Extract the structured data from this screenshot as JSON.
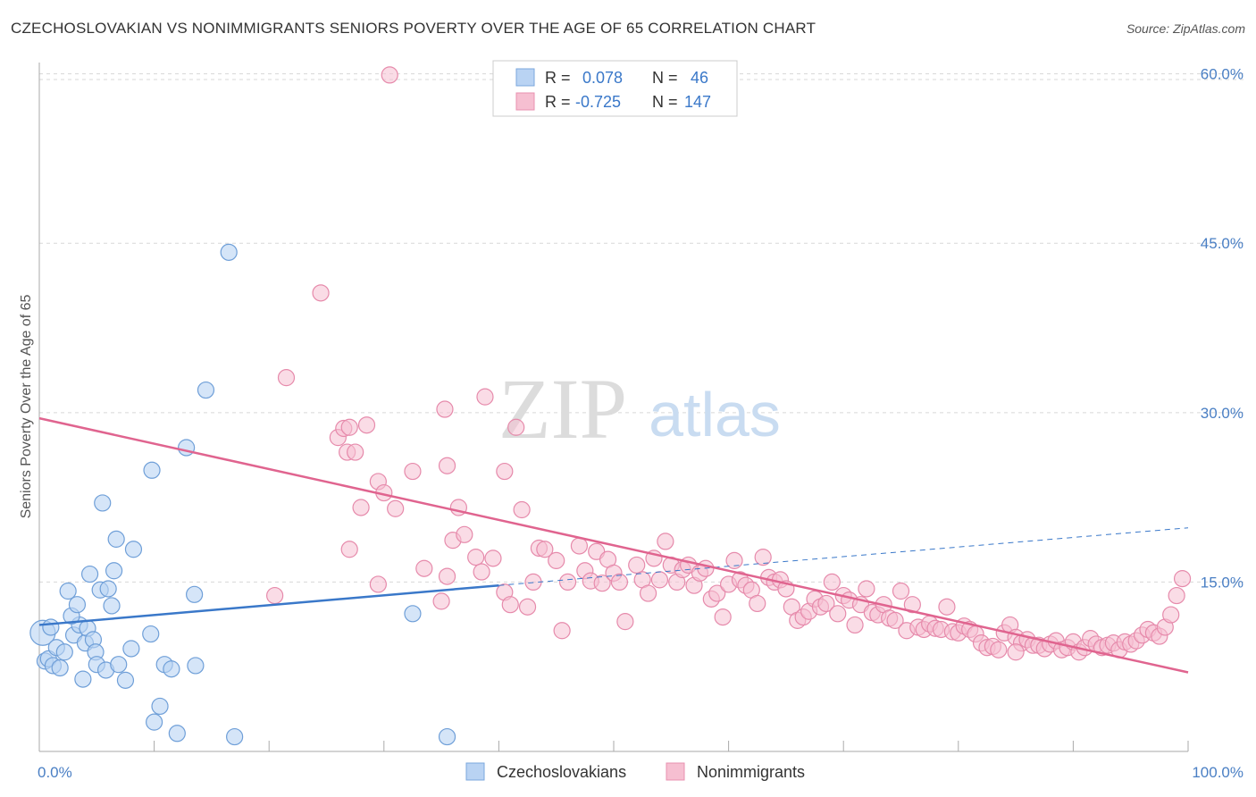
{
  "title": "CZECHOSLOVAKIAN VS NONIMMIGRANTS SENIORS POVERTY OVER THE AGE OF 65 CORRELATION CHART",
  "source": "Source: ZipAtlas.com",
  "watermark": {
    "zip": "ZIP",
    "atlas": "atlas"
  },
  "colors": {
    "blue": "#3a78c9",
    "blue_fill": "#b9d3f3",
    "pink": "#e0648f",
    "pink_fill": "#f6bfd1",
    "grid": "#d8d8d8"
  },
  "legend": {
    "rows": [
      {
        "r_label": "R =",
        "r_value": "0.078",
        "n_label": "N =",
        "n_value": "46"
      },
      {
        "r_label": "R =",
        "r_value": "-0.725",
        "n_label": "N =",
        "n_value": "147"
      }
    ],
    "bottom": [
      "Czechoslovakians",
      "Nonimmigrants"
    ]
  },
  "chart_data": {
    "type": "scatter",
    "title": "CZECHOSLOVAKIAN VS NONIMMIGRANTS SENIORS POVERTY OVER THE AGE OF 65 CORRELATION CHART",
    "xlabel": "",
    "ylabel": "Seniors Poverty Over the Age of 65",
    "xlim": [
      0,
      100
    ],
    "ylim": [
      0,
      61
    ],
    "x_tick_labels": [
      "0.0%",
      "100.0%"
    ],
    "y_ticks": [
      15,
      30,
      45,
      60
    ],
    "y_tick_labels": [
      "15.0%",
      "30.0%",
      "45.0%",
      "60.0%"
    ],
    "grid": true,
    "legend_position": "top-center",
    "series": [
      {
        "name": "Czechoslovakians",
        "r": 0.078,
        "n": 46,
        "trend": {
          "x0": 0,
          "y0": 11.2,
          "x1": 40,
          "y1": 14.7,
          "dashed_to_x": 100,
          "dashed_y1": 19.8
        },
        "points": [
          [
            0.3,
            10.5
          ],
          [
            0.5,
            8.0
          ],
          [
            0.8,
            8.2
          ],
          [
            1.2,
            7.6
          ],
          [
            1.5,
            9.2
          ],
          [
            1.8,
            7.4
          ],
          [
            2.2,
            8.8
          ],
          [
            2.5,
            14.2
          ],
          [
            3.0,
            10.3
          ],
          [
            3.5,
            11.2
          ],
          [
            3.8,
            6.4
          ],
          [
            4.0,
            9.6
          ],
          [
            4.2,
            10.9
          ],
          [
            4.4,
            15.7
          ],
          [
            4.7,
            9.9
          ],
          [
            4.9,
            8.8
          ],
          [
            5.0,
            7.7
          ],
          [
            5.3,
            14.3
          ],
          [
            5.5,
            22.0
          ],
          [
            5.8,
            7.2
          ],
          [
            6.0,
            14.4
          ],
          [
            6.3,
            12.9
          ],
          [
            6.7,
            18.8
          ],
          [
            6.9,
            7.7
          ],
          [
            7.5,
            6.3
          ],
          [
            8.0,
            9.1
          ],
          [
            8.2,
            17.9
          ],
          [
            9.7,
            10.4
          ],
          [
            9.8,
            24.9
          ],
          [
            10.0,
            2.6
          ],
          [
            10.5,
            4.0
          ],
          [
            10.9,
            7.7
          ],
          [
            11.5,
            7.3
          ],
          [
            12.0,
            1.6
          ],
          [
            12.8,
            26.9
          ],
          [
            13.5,
            13.9
          ],
          [
            13.6,
            7.6
          ],
          [
            14.5,
            32.0
          ],
          [
            16.5,
            44.2
          ],
          [
            17.0,
            1.3
          ],
          [
            1.0,
            11.0
          ],
          [
            2.8,
            12.0
          ],
          [
            3.3,
            13.0
          ],
          [
            6.5,
            16.0
          ],
          [
            32.5,
            12.2
          ],
          [
            35.5,
            1.3
          ]
        ]
      },
      {
        "name": "Nonimmigrants",
        "r": -0.725,
        "n": 147,
        "trend": {
          "x0": 0,
          "y0": 29.5,
          "x1": 100,
          "y1": 7.0
        },
        "points": [
          [
            30.5,
            59.9
          ],
          [
            24.5,
            40.6
          ],
          [
            21.5,
            33.1
          ],
          [
            26.0,
            27.8
          ],
          [
            26.5,
            28.6
          ],
          [
            26.8,
            26.5
          ],
          [
            28.5,
            28.9
          ],
          [
            27.0,
            28.7
          ],
          [
            27.5,
            26.5
          ],
          [
            29.5,
            23.9
          ],
          [
            30.0,
            22.9
          ],
          [
            31.0,
            21.5
          ],
          [
            32.5,
            24.8
          ],
          [
            35.3,
            30.3
          ],
          [
            35.5,
            25.3
          ],
          [
            36.5,
            21.6
          ],
          [
            38.8,
            31.4
          ],
          [
            40.5,
            24.8
          ],
          [
            41.5,
            28.7
          ],
          [
            42.0,
            21.4
          ],
          [
            27.0,
            17.9
          ],
          [
            28.0,
            21.6
          ],
          [
            29.5,
            14.8
          ],
          [
            33.5,
            16.2
          ],
          [
            35.0,
            13.3
          ],
          [
            35.5,
            15.5
          ],
          [
            36.0,
            18.7
          ],
          [
            37.0,
            19.2
          ],
          [
            38.0,
            17.2
          ],
          [
            38.5,
            15.9
          ],
          [
            39.5,
            17.1
          ],
          [
            40.5,
            14.1
          ],
          [
            41.0,
            13.0
          ],
          [
            42.5,
            12.8
          ],
          [
            43.0,
            15.0
          ],
          [
            43.5,
            18.0
          ],
          [
            44.0,
            17.9
          ],
          [
            45.0,
            16.9
          ],
          [
            45.5,
            10.7
          ],
          [
            46.0,
            15.0
          ],
          [
            47.0,
            18.2
          ],
          [
            47.5,
            16.0
          ],
          [
            48.0,
            15.1
          ],
          [
            48.5,
            17.7
          ],
          [
            49.0,
            14.9
          ],
          [
            49.5,
            17.0
          ],
          [
            50.0,
            15.8
          ],
          [
            50.5,
            15.0
          ],
          [
            51.0,
            11.5
          ],
          [
            52.0,
            16.5
          ],
          [
            52.5,
            15.2
          ],
          [
            53.0,
            14.0
          ],
          [
            53.5,
            17.1
          ],
          [
            54.0,
            15.2
          ],
          [
            54.5,
            18.6
          ],
          [
            55.0,
            16.5
          ],
          [
            55.5,
            15.0
          ],
          [
            56.0,
            16.1
          ],
          [
            56.5,
            16.5
          ],
          [
            57.0,
            14.7
          ],
          [
            57.5,
            15.8
          ],
          [
            58.0,
            16.2
          ],
          [
            58.5,
            13.5
          ],
          [
            59.0,
            14.0
          ],
          [
            59.5,
            11.9
          ],
          [
            60.0,
            14.8
          ],
          [
            60.5,
            16.9
          ],
          [
            61.0,
            15.2
          ],
          [
            61.5,
            14.7
          ],
          [
            62.0,
            14.3
          ],
          [
            62.5,
            13.1
          ],
          [
            63.0,
            17.2
          ],
          [
            63.5,
            15.4
          ],
          [
            64.0,
            15.0
          ],
          [
            64.5,
            15.2
          ],
          [
            65.0,
            14.4
          ],
          [
            65.5,
            12.8
          ],
          [
            66.0,
            11.6
          ],
          [
            66.5,
            11.9
          ],
          [
            67.0,
            12.4
          ],
          [
            67.5,
            13.5
          ],
          [
            68.0,
            12.8
          ],
          [
            68.5,
            13.1
          ],
          [
            69.0,
            15.0
          ],
          [
            69.5,
            12.2
          ],
          [
            70.0,
            13.8
          ],
          [
            70.5,
            13.4
          ],
          [
            71.0,
            11.2
          ],
          [
            71.5,
            13.0
          ],
          [
            72.0,
            14.4
          ],
          [
            72.5,
            12.3
          ],
          [
            73.0,
            12.1
          ],
          [
            73.5,
            13.0
          ],
          [
            74.0,
            11.8
          ],
          [
            74.5,
            11.6
          ],
          [
            75.0,
            14.2
          ],
          [
            75.5,
            10.7
          ],
          [
            76.0,
            13.0
          ],
          [
            76.5,
            11.0
          ],
          [
            77.0,
            10.8
          ],
          [
            77.5,
            11.3
          ],
          [
            78.0,
            10.9
          ],
          [
            78.5,
            10.8
          ],
          [
            79.0,
            12.8
          ],
          [
            79.5,
            10.6
          ],
          [
            80.0,
            10.5
          ],
          [
            80.5,
            11.1
          ],
          [
            81.0,
            10.8
          ],
          [
            81.5,
            10.4
          ],
          [
            82.0,
            9.6
          ],
          [
            82.5,
            9.2
          ],
          [
            83.0,
            9.3
          ],
          [
            83.5,
            9.0
          ],
          [
            84.0,
            10.5
          ],
          [
            84.5,
            11.2
          ],
          [
            85.0,
            10.1
          ],
          [
            85.5,
            9.6
          ],
          [
            86.0,
            9.9
          ],
          [
            86.5,
            9.4
          ],
          [
            87.0,
            9.4
          ],
          [
            87.5,
            9.1
          ],
          [
            88.0,
            9.5
          ],
          [
            88.5,
            9.8
          ],
          [
            89.0,
            9.0
          ],
          [
            89.5,
            9.2
          ],
          [
            90.0,
            9.7
          ],
          [
            90.5,
            8.8
          ],
          [
            91.0,
            9.2
          ],
          [
            91.5,
            10.0
          ],
          [
            92.0,
            9.5
          ],
          [
            92.5,
            9.2
          ],
          [
            93.0,
            9.4
          ],
          [
            93.5,
            9.6
          ],
          [
            94.0,
            9.0
          ],
          [
            94.5,
            9.7
          ],
          [
            95.0,
            9.5
          ],
          [
            95.5,
            9.8
          ],
          [
            96.0,
            10.3
          ],
          [
            96.5,
            10.8
          ],
          [
            97.0,
            10.5
          ],
          [
            97.5,
            10.2
          ],
          [
            98.0,
            11.0
          ],
          [
            98.5,
            12.1
          ],
          [
            99.0,
            13.8
          ],
          [
            99.5,
            15.3
          ],
          [
            20.5,
            13.8
          ],
          [
            85.0,
            8.8
          ]
        ]
      }
    ]
  }
}
